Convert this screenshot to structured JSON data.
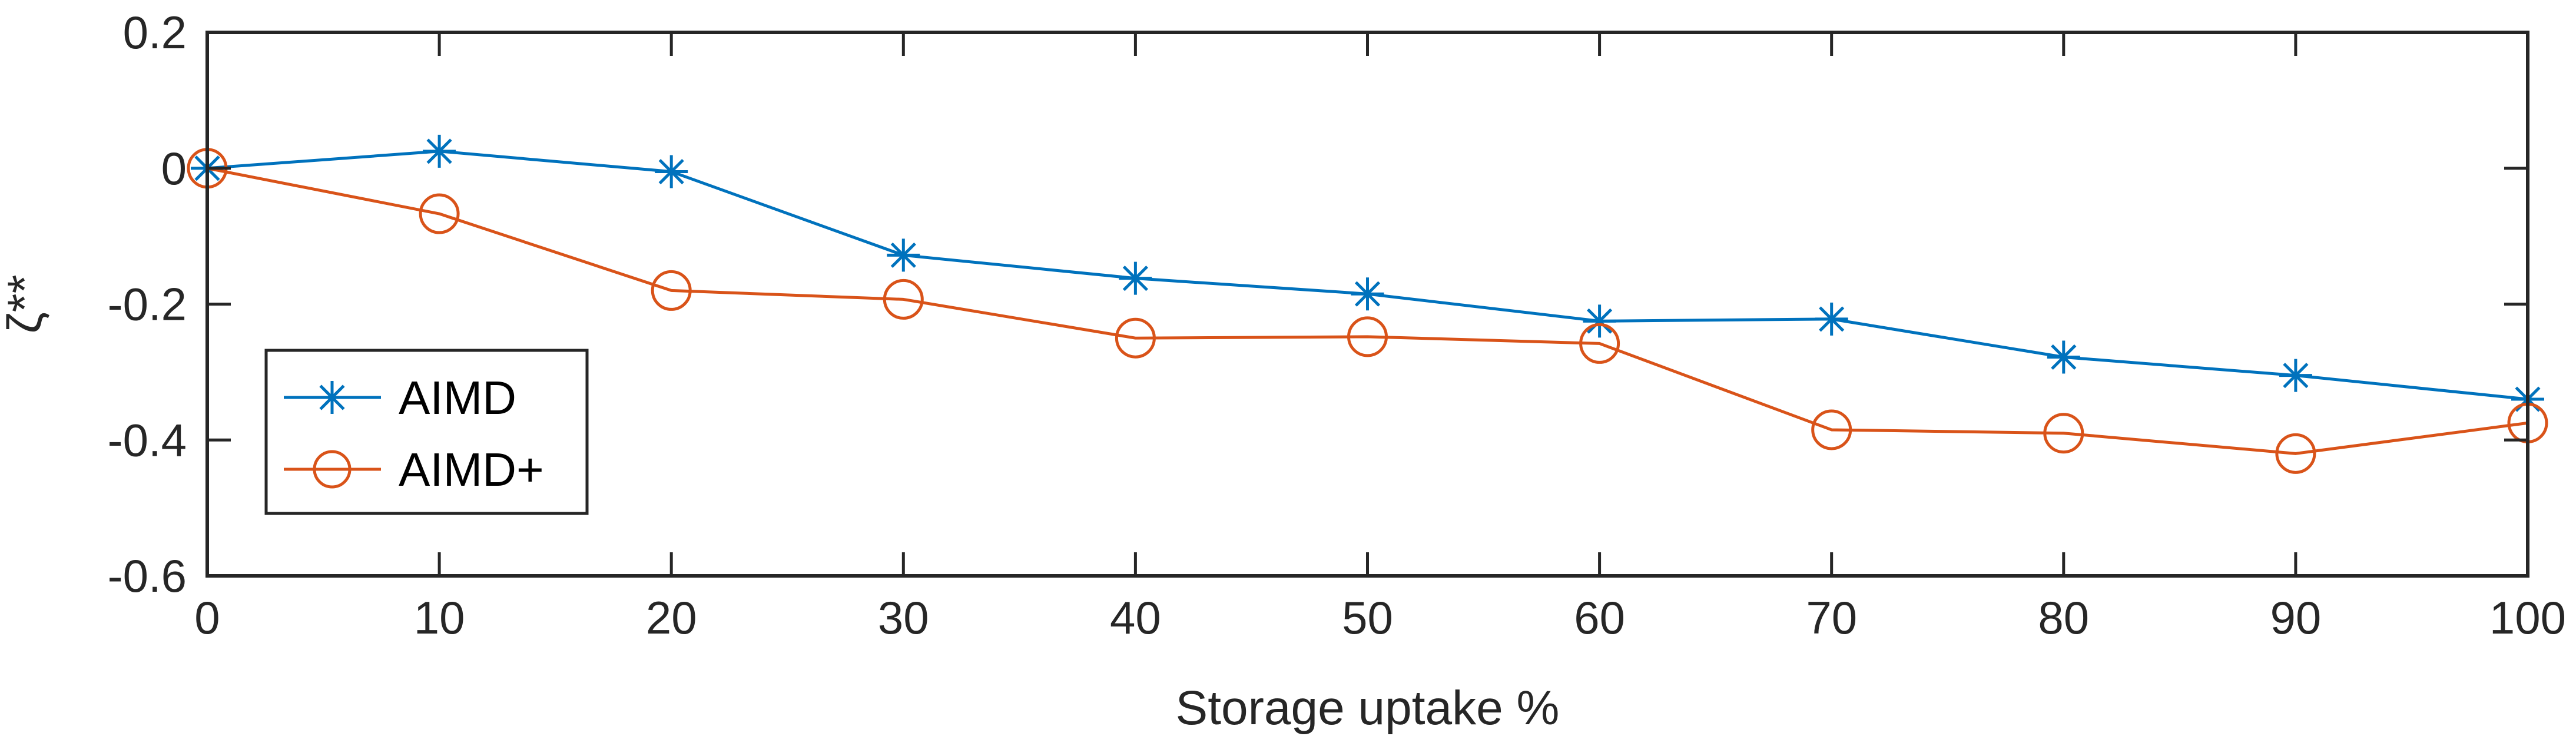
{
  "chart_data": {
    "type": "line",
    "title": "",
    "xlabel": "Storage uptake %",
    "ylabel": "ζ**",
    "xlim": [
      0,
      100
    ],
    "ylim": [
      -0.6,
      0.2
    ],
    "xticks": [
      "0",
      "10",
      "20",
      "30",
      "40",
      "50",
      "60",
      "70",
      "80",
      "90",
      "100"
    ],
    "yticks": [
      "0.2",
      "0",
      "-0.2",
      "-0.4",
      "-0.6"
    ],
    "grid": false,
    "legend_position": "lower-left",
    "x": [
      0,
      10,
      20,
      30,
      40,
      50,
      60,
      70,
      80,
      90,
      100
    ],
    "series": [
      {
        "name": "AIMD",
        "color": "#0072BD",
        "marker": "asterisk",
        "values": [
          0.0,
          0.025,
          -0.005,
          -0.128,
          -0.162,
          -0.185,
          -0.225,
          -0.222,
          -0.278,
          -0.305,
          -0.34
        ]
      },
      {
        "name": "AIMD+",
        "color": "#D95319",
        "marker": "circle",
        "values": [
          0.0,
          -0.067,
          -0.18,
          -0.193,
          -0.25,
          -0.248,
          -0.258,
          -0.385,
          -0.39,
          -0.42,
          -0.375
        ]
      }
    ]
  }
}
